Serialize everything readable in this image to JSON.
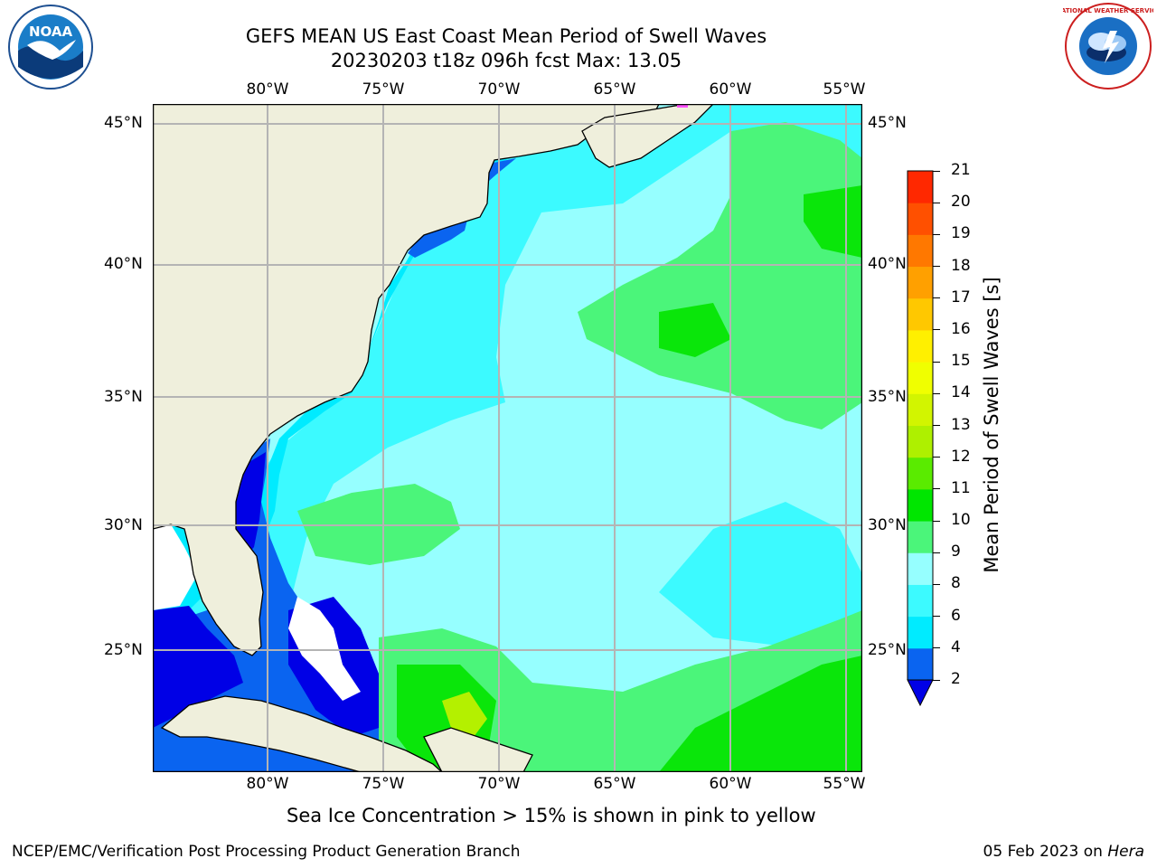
{
  "header": {
    "title_line1": "GEFS MEAN US East Coast Mean Period of Swell Waves",
    "title_line2": "20230203 t18z 096h fcst   Max: 13.05"
  },
  "logos": {
    "left_text": "NOAA",
    "right_text": "NATIONAL WEATHER SERVICE"
  },
  "map": {
    "lon_labels": [
      "80°W",
      "75°W",
      "70°W",
      "65°W",
      "60°W",
      "55°W"
    ],
    "lat_labels": [
      "45°N",
      "40°N",
      "35°N",
      "30°N",
      "25°N"
    ],
    "colors": {
      "land": "#efefdc",
      "sea_ice_white": "#ffffff",
      "deep_blue": "#0000e6",
      "blue": "#0a64f0",
      "cyan": "#00ebff",
      "light_cyan": "#3cfaff",
      "pale_cyan": "#96ffff",
      "light_green": "#4bf57a",
      "green": "#0ae60a",
      "yellow_green": "#b4f000"
    }
  },
  "colorbar": {
    "label": "Mean Period of Swell Waves [s]",
    "ticks": [
      "2",
      "4",
      "6",
      "8",
      "9",
      "10",
      "11",
      "12",
      "13",
      "14",
      "15",
      "16",
      "17",
      "18",
      "19",
      "20",
      "21"
    ],
    "colors": [
      "#0a64f0",
      "#00ebff",
      "#3cfaff",
      "#96ffff",
      "#4bf57a",
      "#00e600",
      "#5aeb00",
      "#aef000",
      "#d2f500",
      "#f0ff00",
      "#fff000",
      "#ffc800",
      "#ffa000",
      "#ff7800",
      "#ff5000",
      "#ff2800"
    ],
    "extend_color": "#0000e6"
  },
  "caption": "Sea Ice Concentration > 15% is shown in pink to yellow",
  "footer": {
    "left": "NCEP/EMC/Verification Post Processing Product Generation Branch",
    "right_date": "05 Feb 2023 on ",
    "right_host": "Hera"
  }
}
